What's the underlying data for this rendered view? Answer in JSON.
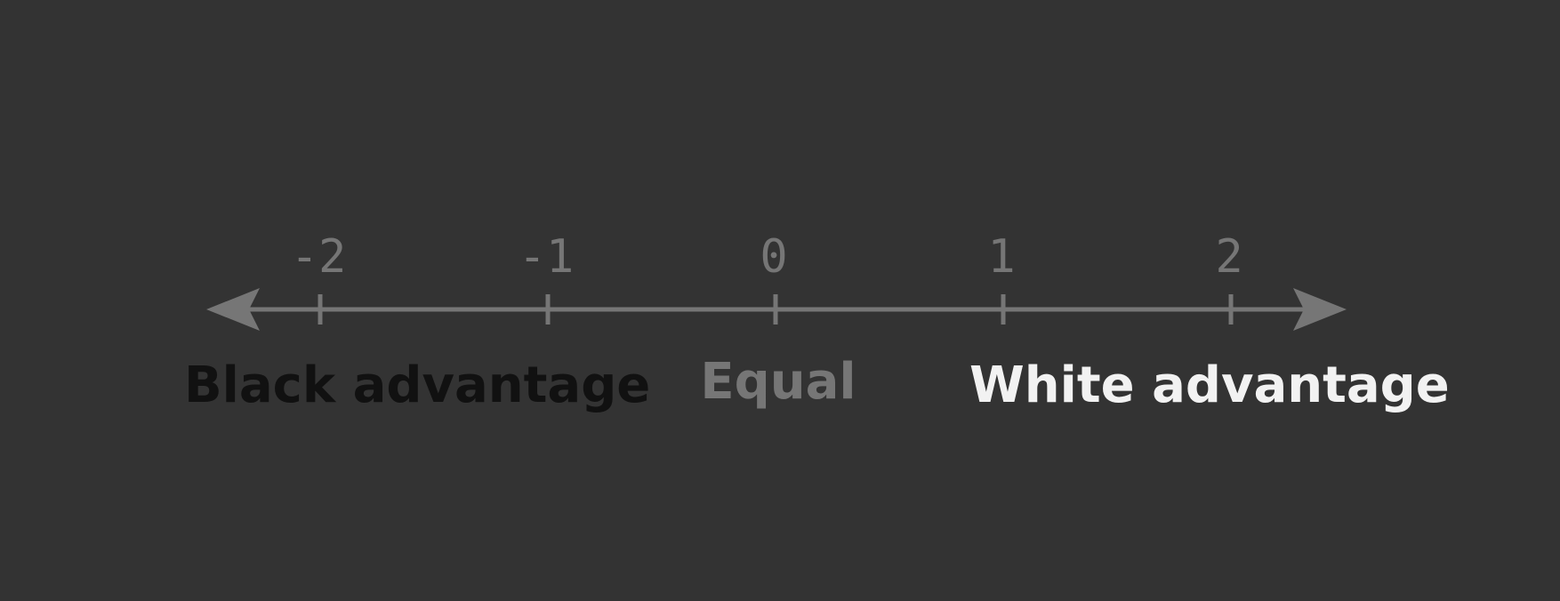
{
  "diagram": {
    "ticks": [
      {
        "value": -2,
        "label": "-2"
      },
      {
        "value": -1,
        "label": "-1"
      },
      {
        "value": 0,
        "label": "0"
      },
      {
        "value": 1,
        "label": "1"
      },
      {
        "value": 2,
        "label": "2"
      }
    ],
    "captions": {
      "black": "Black advantage",
      "equal": "Equal",
      "white": "White advantage"
    },
    "colors": {
      "background": "#333333",
      "axis": "#767676",
      "black_caption": "#111111",
      "equal_caption": "#767676",
      "white_caption": "#f2f2f2"
    }
  }
}
